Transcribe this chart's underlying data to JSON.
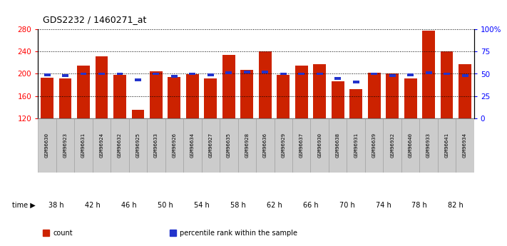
{
  "title": "GDS2232 / 1460271_at",
  "samples": [
    "GSM96630",
    "GSM96923",
    "GSM96631",
    "GSM96924",
    "GSM96632",
    "GSM96925",
    "GSM96633",
    "GSM96926",
    "GSM96634",
    "GSM96927",
    "GSM96635",
    "GSM96928",
    "GSM96636",
    "GSM96929",
    "GSM96637",
    "GSM96930",
    "GSM96638",
    "GSM96931",
    "GSM96639",
    "GSM96932",
    "GSM96640",
    "GSM96933",
    "GSM96641",
    "GSM96934"
  ],
  "count_values": [
    193,
    192,
    215,
    232,
    198,
    135,
    204,
    194,
    199,
    192,
    234,
    207,
    240,
    198,
    215,
    218,
    186,
    172,
    202,
    200,
    192,
    278,
    240,
    218
  ],
  "percentile_values": [
    49,
    48,
    50,
    50,
    50,
    43,
    50,
    47,
    50,
    49,
    51,
    52,
    52,
    50,
    50,
    50,
    45,
    41,
    50,
    48,
    49,
    51,
    50,
    48
  ],
  "y_min": 120,
  "y_max": 280,
  "bar_color": "#cc2200",
  "blue_color": "#2233cc",
  "time_groups": [
    {
      "label": "38 h",
      "indices": [
        0,
        1
      ],
      "color": "#ffffff",
      "chart_color": "#ffffff"
    },
    {
      "label": "42 h",
      "indices": [
        2,
        3
      ],
      "color": "#ccffcc",
      "chart_color": "#ffffff"
    },
    {
      "label": "46 h",
      "indices": [
        4,
        5
      ],
      "color": "#ccffcc",
      "chart_color": "#ffffff"
    },
    {
      "label": "50 h",
      "indices": [
        6,
        7
      ],
      "color": "#ccffcc",
      "chart_color": "#ffffff"
    },
    {
      "label": "54 h",
      "indices": [
        8,
        9
      ],
      "color": "#ccffcc",
      "chart_color": "#ffffff"
    },
    {
      "label": "58 h",
      "indices": [
        10,
        11
      ],
      "color": "#ccffcc",
      "chart_color": "#ffffff"
    },
    {
      "label": "62 h",
      "indices": [
        12,
        13
      ],
      "color": "#ccffcc",
      "chart_color": "#ffffff"
    },
    {
      "label": "66 h",
      "indices": [
        14,
        15
      ],
      "color": "#aaffaa",
      "chart_color": "#ffffff"
    },
    {
      "label": "70 h",
      "indices": [
        16,
        17
      ],
      "color": "#aaffaa",
      "chart_color": "#ffffff"
    },
    {
      "label": "74 h",
      "indices": [
        18,
        19
      ],
      "color": "#aaffaa",
      "chart_color": "#ffffff"
    },
    {
      "label": "78 h",
      "indices": [
        20,
        21
      ],
      "color": "#aaffaa",
      "chart_color": "#ffffff"
    },
    {
      "label": "82 h",
      "indices": [
        22,
        23
      ],
      "color": "#55ee55",
      "chart_color": "#ffffff"
    }
  ],
  "yticks_left": [
    120,
    160,
    200,
    240,
    280
  ],
  "yticks_right": [
    0,
    25,
    50,
    75,
    100
  ],
  "right_tick_labels": [
    "0",
    "25",
    "50",
    "75",
    "100%"
  ],
  "sample_bg_color": "#cccccc",
  "legend_items": [
    {
      "label": "count",
      "color": "#cc2200"
    },
    {
      "label": "percentile rank within the sample",
      "color": "#2233cc"
    }
  ]
}
